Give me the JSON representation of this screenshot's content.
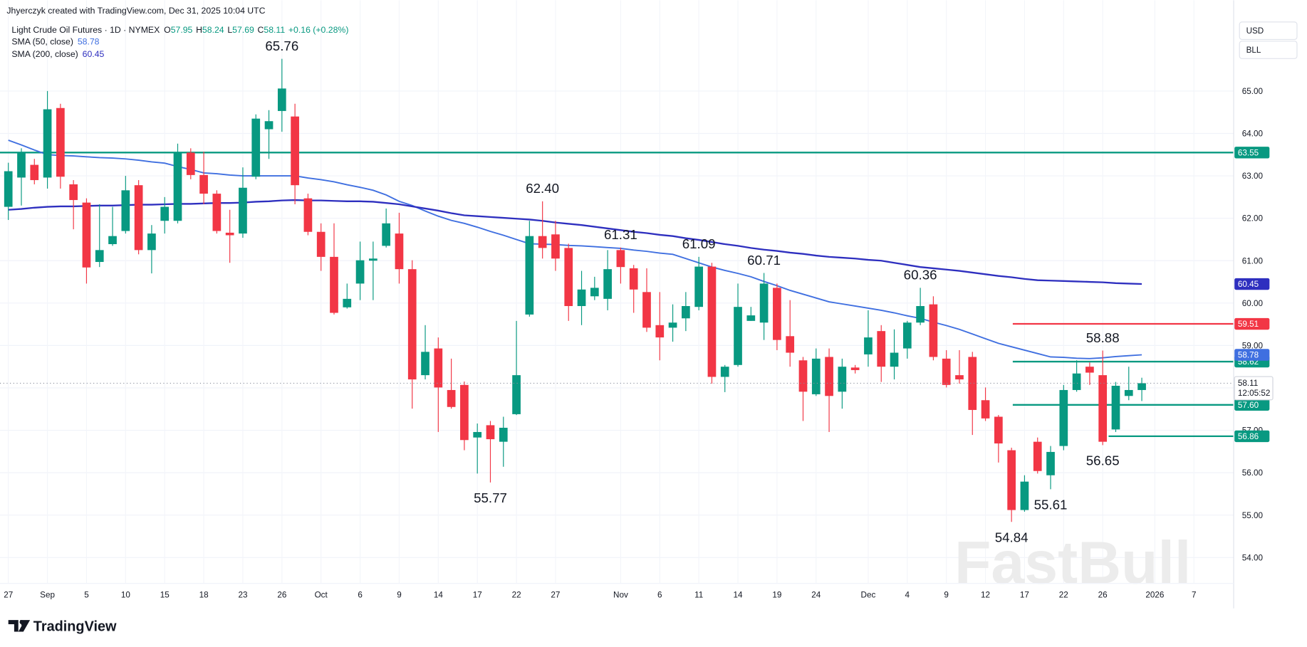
{
  "chart_data": {
    "type": "candlestick",
    "credit": "Jhyerczyk created with TradingView.com, Dec 31, 2025 10:04 UTC",
    "title": "Light Crude Oil Futures · 1D · NYMEX",
    "ohlc": [
      {
        "key": "O",
        "value": 57.95
      },
      {
        "key": "H",
        "value": 58.24
      },
      {
        "key": "L",
        "value": 57.69
      },
      {
        "key": "C",
        "value": 58.11
      }
    ],
    "change": "+0.16 (+0.28%)",
    "currency": "USD",
    "unit": "BLL",
    "countdown": "12:05:52",
    "brand": "TradingView",
    "watermark": "FastBull",
    "up_color": "#089981",
    "down_color": "#f23645",
    "categories": [
      "27",
      null,
      null,
      "Sep",
      null,
      null,
      "5",
      null,
      null,
      "10",
      null,
      null,
      "15",
      null,
      null,
      "18",
      null,
      null,
      "23",
      null,
      null,
      "26",
      null,
      null,
      "Oct",
      null,
      null,
      "6",
      null,
      null,
      "9",
      null,
      null,
      "14",
      null,
      null,
      "17",
      null,
      null,
      "22",
      null,
      null,
      "27",
      null,
      null,
      null,
      null,
      "Nov",
      null,
      null,
      "6",
      null,
      null,
      "11",
      null,
      null,
      "14",
      null,
      null,
      "19",
      null,
      null,
      "24",
      null,
      null,
      null,
      "Dec",
      null,
      null,
      "4",
      null,
      null,
      "9",
      null,
      null,
      "12",
      null,
      null,
      "17",
      null,
      null,
      "22",
      null,
      null,
      "26",
      null,
      null,
      null,
      "2026",
      null,
      null,
      "7"
    ],
    "open": [
      62.27,
      62.96,
      63.26,
      62.96,
      64.6,
      62.8,
      62.37,
      60.97,
      61.39,
      61.7,
      62.78,
      61.25,
      61.94,
      61.94,
      63.55,
      63.02,
      62.58,
      61.66,
      61.64,
      62.98,
      64.1,
      64.53,
      64.4,
      62.47,
      61.68,
      61.09,
      59.9,
      60.46,
      61.0,
      61.35,
      61.64,
      60.8,
      58.3,
      58.93,
      57.95,
      58.07,
      56.83,
      57.12,
      56.73,
      57.38,
      59.73,
      61.58,
      61.62,
      61.3,
      59.93,
      60.16,
      60.1,
      61.25,
      60.82,
      60.26,
      59.48,
      59.42,
      59.64,
      59.91,
      60.86,
      58.26,
      58.54,
      59.58,
      59.54,
      60.36,
      59.22,
      58.65,
      57.85,
      58.73,
      57.91,
      58.48,
      58.79,
      59.34,
      58.5,
      58.93,
      59.54,
      59.97,
      58.69,
      58.3,
      58.73,
      57.71,
      57.32,
      56.53,
      55.12,
      56.73,
      55.94,
      56.63,
      57.95,
      58.5,
      58.3,
      57.02,
      57.81,
      57.95,
      null,
      null,
      null,
      null
    ],
    "high": [
      63.31,
      63.65,
      63.4,
      65.0,
      64.7,
      62.9,
      62.47,
      62.33,
      62.27,
      63.0,
      62.9,
      61.84,
      62.5,
      63.76,
      63.65,
      63.57,
      62.66,
      62.2,
      63.2,
      64.45,
      64.55,
      65.76,
      64.7,
      62.58,
      61.88,
      61.88,
      60.46,
      61.45,
      61.45,
      62.23,
      62.13,
      61.01,
      59.48,
      59.19,
      58.69,
      58.15,
      57.16,
      57.22,
      57.32,
      59.58,
      61.94,
      62.4,
      61.94,
      61.4,
      60.76,
      60.62,
      61.25,
      61.31,
      60.9,
      60.82,
      60.26,
      59.97,
      60.26,
      61.09,
      60.95,
      58.54,
      60.46,
      59.91,
      60.71,
      60.46,
      60.07,
      58.73,
      58.93,
      58.93,
      58.69,
      58.54,
      59.83,
      59.48,
      59.38,
      59.58,
      60.36,
      60.16,
      58.89,
      58.89,
      58.85,
      58.01,
      57.36,
      56.59,
      55.94,
      56.83,
      56.63,
      58.07,
      58.65,
      58.6,
      58.88,
      58.14,
      58.5,
      58.24,
      null,
      null,
      null,
      null
    ],
    "low": [
      61.96,
      62.3,
      62.8,
      62.7,
      62.7,
      61.74,
      60.46,
      60.85,
      61.35,
      61.64,
      61.15,
      60.7,
      61.64,
      61.88,
      62.92,
      62.33,
      61.64,
      60.95,
      61.54,
      62.92,
      63.4,
      64.04,
      62.33,
      61.6,
      60.76,
      59.73,
      59.87,
      60.07,
      60.07,
      61.31,
      60.46,
      57.51,
      58.2,
      56.96,
      57.51,
      56.53,
      55.98,
      55.77,
      56.14,
      57.36,
      59.68,
      61.05,
      60.76,
      59.58,
      59.48,
      60.07,
      59.83,
      60.46,
      59.77,
      59.32,
      58.65,
      59.09,
      59.34,
      59.83,
      58.1,
      57.9,
      58.5,
      59.58,
      59.13,
      58.89,
      58.5,
      57.22,
      57.81,
      56.96,
      57.51,
      58.34,
      58.5,
      58.14,
      58.2,
      58.69,
      59.48,
      58.65,
      58.01,
      58.1,
      56.89,
      57.22,
      56.24,
      54.84,
      55.08,
      55.98,
      55.61,
      56.53,
      57.91,
      58.07,
      56.65,
      56.96,
      57.71,
      57.69,
      null,
      null,
      null,
      null
    ],
    "close": [
      63.11,
      63.55,
      62.9,
      64.57,
      62.98,
      62.43,
      60.84,
      61.25,
      61.58,
      62.66,
      61.25,
      61.64,
      62.27,
      63.55,
      63.02,
      62.58,
      61.7,
      61.6,
      62.72,
      64.35,
      64.29,
      65.06,
      62.78,
      61.68,
      61.09,
      59.77,
      60.1,
      61.01,
      61.05,
      61.88,
      60.8,
      58.2,
      58.85,
      58.01,
      57.55,
      56.77,
      56.96,
      56.79,
      57.06,
      58.3,
      61.58,
      61.3,
      61.05,
      59.93,
      60.32,
      60.36,
      60.8,
      60.85,
      60.32,
      59.42,
      59.19,
      59.54,
      59.93,
      60.86,
      58.26,
      58.5,
      59.91,
      59.71,
      60.46,
      59.13,
      58.83,
      57.91,
      58.69,
      57.81,
      58.5,
      58.42,
      59.19,
      58.5,
      58.83,
      59.54,
      59.93,
      58.73,
      58.07,
      58.2,
      57.48,
      57.28,
      56.69,
      55.12,
      55.79,
      56.04,
      56.49,
      57.95,
      58.34,
      58.36,
      56.73,
      58.05,
      57.95,
      58.11,
      null,
      null,
      null,
      null
    ],
    "series": [
      {
        "name": "SMA (50, close)",
        "color": "#3f6fe0",
        "values": [
          63.84,
          63.73,
          63.61,
          63.5,
          63.48,
          63.47,
          63.45,
          63.43,
          63.42,
          63.4,
          63.37,
          63.33,
          63.3,
          63.22,
          63.15,
          63.07,
          63.05,
          63.02,
          63.0,
          63.0,
          63.0,
          63.0,
          63.0,
          62.95,
          62.91,
          62.86,
          62.79,
          62.73,
          62.66,
          62.55,
          62.4,
          62.3,
          62.17,
          62.05,
          61.95,
          61.88,
          61.79,
          61.69,
          61.6,
          61.5,
          61.4,
          61.39,
          61.38,
          61.36,
          61.35,
          61.33,
          61.31,
          61.29,
          61.25,
          61.22,
          61.18,
          61.15,
          61.05,
          60.95,
          60.85,
          60.77,
          60.7,
          60.62,
          60.51,
          60.41,
          60.3,
          60.21,
          60.12,
          60.03,
          59.98,
          59.93,
          59.88,
          59.83,
          59.77,
          59.7,
          59.64,
          59.55,
          59.47,
          59.38,
          59.27,
          59.16,
          59.05,
          58.97,
          58.89,
          58.81,
          58.73,
          58.72,
          58.7,
          58.69,
          58.71,
          58.74,
          58.76,
          58.78,
          null,
          null,
          null,
          null
        ]
      },
      {
        "name": "SMA (200, close)",
        "color": "#2e2fbf",
        "values": [
          62.2,
          62.22,
          62.25,
          62.27,
          62.28,
          62.28,
          62.29,
          62.3,
          62.3,
          62.31,
          62.32,
          62.32,
          62.33,
          62.34,
          62.34,
          62.35,
          62.36,
          62.36,
          62.37,
          62.39,
          62.4,
          62.42,
          62.43,
          62.42,
          62.42,
          62.41,
          62.4,
          62.4,
          62.39,
          62.36,
          62.33,
          62.28,
          62.23,
          62.18,
          62.12,
          62.07,
          62.05,
          62.03,
          62.01,
          61.99,
          61.97,
          61.94,
          61.9,
          61.87,
          61.84,
          61.8,
          61.76,
          61.72,
          61.68,
          61.65,
          61.61,
          61.58,
          61.53,
          61.49,
          61.44,
          61.39,
          61.35,
          61.3,
          61.26,
          61.23,
          61.19,
          61.16,
          61.12,
          61.09,
          61.07,
          61.05,
          61.02,
          61.0,
          60.95,
          60.9,
          60.85,
          60.82,
          60.79,
          60.76,
          60.72,
          60.68,
          60.64,
          60.61,
          60.57,
          60.54,
          60.53,
          60.52,
          60.51,
          60.5,
          60.49,
          60.47,
          60.46,
          60.45,
          null,
          null,
          null,
          null
        ]
      }
    ],
    "levels": [
      {
        "value": 63.55,
        "color": "#089981"
      },
      {
        "value": 59.51,
        "color": "#f23645"
      },
      {
        "value": 58.62,
        "color": "#089981"
      },
      {
        "value": 57.6,
        "label": "57.60",
        "color": "#089981"
      },
      {
        "value": 56.86,
        "color": "#089981"
      }
    ],
    "high_labels": [
      {
        "value": 65.76
      },
      {
        "value": 62.4,
        "label": "62.40"
      },
      {
        "value": 61.31
      },
      {
        "value": 61.09
      },
      {
        "value": 60.71
      },
      {
        "value": 60.36
      },
      {
        "value": 58.88
      }
    ],
    "low_labels": [
      {
        "value": 55.77
      },
      {
        "value": 54.84
      },
      {
        "value": 55.61
      },
      {
        "value": 56.65
      }
    ],
    "ylim": [
      53.39,
      67.14
    ],
    "yticks": [
      {
        "value": 54,
        "label": "54.00"
      },
      {
        "value": 55,
        "label": "55.00"
      },
      {
        "value": 56,
        "label": "56.00"
      },
      {
        "value": 57,
        "label": "57.00"
      },
      {
        "value": 58,
        "label": "58.00"
      },
      {
        "value": 59,
        "label": "59.00"
      },
      {
        "value": 60,
        "label": "60.00"
      },
      {
        "value": 61,
        "label": "61.00"
      },
      {
        "value": 62,
        "label": "62.00"
      },
      {
        "value": 63,
        "label": "63.00"
      },
      {
        "value": 64,
        "label": "64.00"
      },
      {
        "value": 65,
        "label": "65.00"
      }
    ],
    "grid": true
  }
}
